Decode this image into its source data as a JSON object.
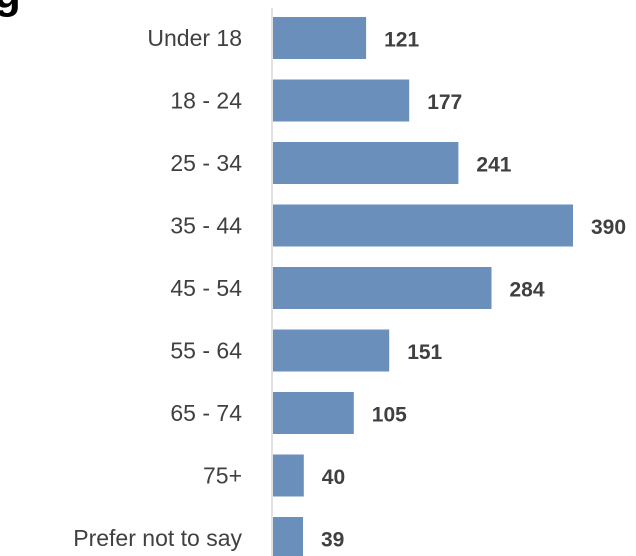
{
  "title": "g",
  "colors": {
    "bar": "#6a8fbb",
    "axis": "#d9d9d9",
    "text": "#404040"
  },
  "chart_data": {
    "type": "bar",
    "orientation": "horizontal",
    "title": "g",
    "xlabel": "",
    "ylabel": "",
    "categories": [
      "Under 18",
      "18 - 24",
      "25 - 34",
      "35 - 44",
      "45 - 54",
      "55 - 64",
      "65 - 74",
      "75+",
      "Prefer not to say"
    ],
    "values": [
      121,
      177,
      241,
      390,
      284,
      151,
      105,
      40,
      39
    ],
    "data_labels": [
      "121",
      "177",
      "241",
      "390",
      "284",
      "151",
      "105",
      "40",
      "39"
    ],
    "xlim": [
      0,
      400
    ],
    "grid": false,
    "legend": "none"
  }
}
